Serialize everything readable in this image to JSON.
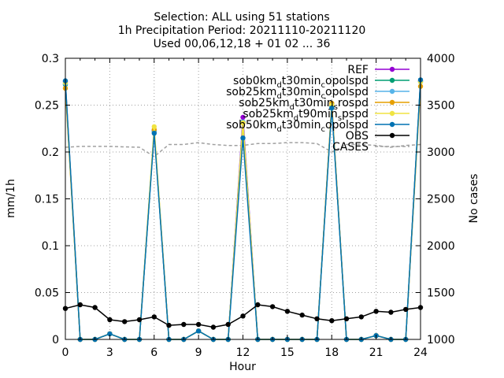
{
  "title_lines": [
    "Selection: ALL using    51 stations",
    "1h Precipitation   Period: 20211110-20211120",
    "Used 00,06,12,18 + 01 02 ... 36"
  ],
  "chart_data": {
    "type": "line",
    "xlabel": "Hour",
    "ylabel": "mm/1h",
    "y2label": "No cases",
    "xlim": [
      0,
      24
    ],
    "ylim": [
      0,
      0.3
    ],
    "y2lim": [
      1000,
      4000
    ],
    "xticks": [
      0,
      3,
      6,
      9,
      12,
      15,
      18,
      21,
      24
    ],
    "yticks": [
      0,
      0.05,
      0.1,
      0.15,
      0.2,
      0.25,
      0.3
    ],
    "y2ticks": [
      1000,
      1500,
      2000,
      2500,
      3000,
      3500,
      4000
    ],
    "xtick_labels": [
      "0",
      "3",
      "6",
      "9",
      "12",
      "15",
      "18",
      "21",
      "24"
    ],
    "ytick_labels": [
      "0",
      "0.05",
      "0.1",
      "0.15",
      "0.2",
      "0.25",
      "0.3"
    ],
    "y2tick_labels": [
      "1000",
      "1500",
      "2000",
      "2500",
      "3000",
      "3500",
      "4000"
    ],
    "grid": true,
    "legend_position": "top-right",
    "x": [
      0,
      1,
      2,
      3,
      4,
      5,
      6,
      7,
      8,
      9,
      10,
      11,
      12,
      13,
      14,
      15,
      16,
      17,
      18,
      19,
      20,
      21,
      22,
      23,
      24
    ],
    "series": [
      {
        "name": "REF",
        "color": "#9400d3",
        "marker": "circle",
        "axis": "y",
        "values": [
          0.275,
          0,
          0,
          0.006,
          0,
          0,
          0.223,
          0,
          0,
          0.009,
          0,
          0,
          0.237,
          0,
          0,
          0,
          0,
          0,
          0.25,
          0,
          0,
          0.004,
          0,
          0,
          0.276
        ]
      },
      {
        "name": "sob0km_dt30min_c opolspd",
        "color": "#009e73",
        "marker": "circle",
        "axis": "y",
        "values": [
          0.272,
          0,
          0,
          0.006,
          0,
          0,
          0.222,
          0,
          0,
          0.009,
          0,
          0,
          0.232,
          0,
          0,
          0,
          0,
          0,
          0.249,
          0,
          0,
          0.004,
          0,
          0,
          0.275
        ]
      },
      {
        "name": "sob25km_dt30min_c opolspd",
        "color": "#56b4e9",
        "marker": "circle",
        "axis": "y",
        "values": [
          0.273,
          0,
          0,
          0.006,
          0,
          0,
          0.222,
          0,
          0,
          0.009,
          0,
          0,
          0.232,
          0,
          0,
          0,
          0,
          0,
          0.248,
          0,
          0,
          0.004,
          0,
          0,
          0.275
        ]
      },
      {
        "name": "sob25km_dt30min_s rospd",
        "color": "#e69f00",
        "marker": "circle",
        "axis": "y",
        "values": [
          0.268,
          0,
          0,
          0.006,
          0,
          0,
          0.224,
          0,
          0,
          0.009,
          0,
          0,
          0.231,
          0,
          0,
          0,
          0,
          0,
          0.252,
          0,
          0,
          0.004,
          0,
          0,
          0.27
        ]
      },
      {
        "name": "sob25km_dt90min_s pspd",
        "color": "#f0e442",
        "marker": "circle",
        "axis": "y",
        "values": [
          0.274,
          0,
          0,
          0.006,
          0,
          0,
          0.227,
          0,
          0,
          0.009,
          0,
          0,
          0.231,
          0,
          0,
          0,
          0,
          0,
          0.25,
          0,
          0,
          0.004,
          0,
          0,
          0.275
        ]
      },
      {
        "name": "sob50km_dt30min_c opolspd",
        "color": "#0072b2",
        "marker": "circle",
        "axis": "y",
        "values": [
          0.276,
          0,
          0,
          0.006,
          0,
          0,
          0.22,
          0,
          0,
          0.009,
          0,
          0,
          0.215,
          0,
          0,
          0,
          0,
          0,
          0.247,
          0,
          0,
          0.004,
          0,
          0,
          0.277
        ]
      },
      {
        "name": "OBS",
        "color": "#000000",
        "marker": "circle",
        "axis": "y",
        "values": [
          0.033,
          0.037,
          0.034,
          0.021,
          0.019,
          0.021,
          0.024,
          0.015,
          0.016,
          0.016,
          0.013,
          0.016,
          0.025,
          0.037,
          0.035,
          0.03,
          0.026,
          0.022,
          0.02,
          0.022,
          0.024,
          0.03,
          0.029,
          0.032,
          0.034
        ]
      },
      {
        "name": "CASES",
        "color": "#a0a0a0",
        "marker": "none",
        "dashed": true,
        "axis": "y2",
        "values": [
          3050,
          3060,
          3060,
          3060,
          3055,
          3050,
          2950,
          3080,
          3080,
          3100,
          3080,
          3070,
          3070,
          3090,
          3090,
          3100,
          3100,
          3090,
          3000,
          3080,
          3080,
          3070,
          3050,
          3070,
          3080
        ]
      }
    ]
  }
}
